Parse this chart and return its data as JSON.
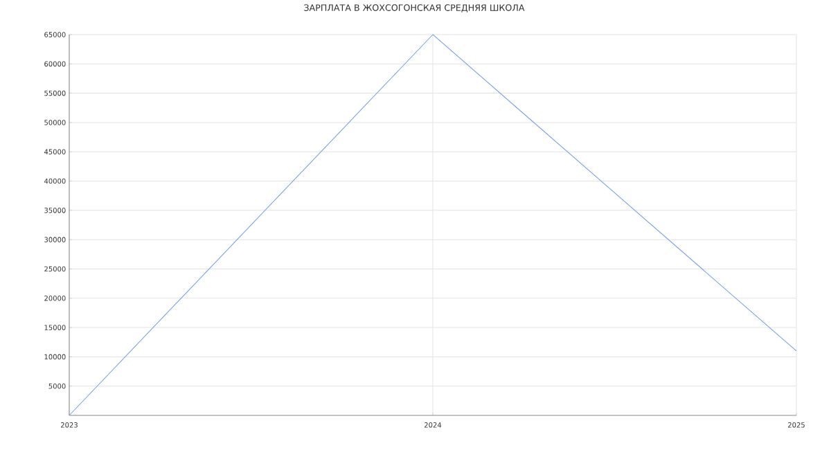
{
  "chart_data": {
    "type": "line",
    "title": "ЗАРПЛАТА В ЖОХСОГОНСКАЯ СРЕДНЯЯ ШКОЛА",
    "x": [
      2023,
      2024,
      2025
    ],
    "series": [
      {
        "color": "#6f9bf5",
        "values": [
          0,
          65000,
          11000
        ]
      }
    ],
    "xlim": [
      2023,
      2025
    ],
    "xticks": [
      2023,
      2024,
      2025
    ],
    "ylim": [
      0,
      65000
    ],
    "yticks": [
      5000,
      10000,
      15000,
      20000,
      25000,
      30000,
      35000,
      40000,
      45000,
      50000,
      55000,
      60000,
      65000
    ],
    "grid": true,
    "marker": "none",
    "line_style": "solid"
  }
}
